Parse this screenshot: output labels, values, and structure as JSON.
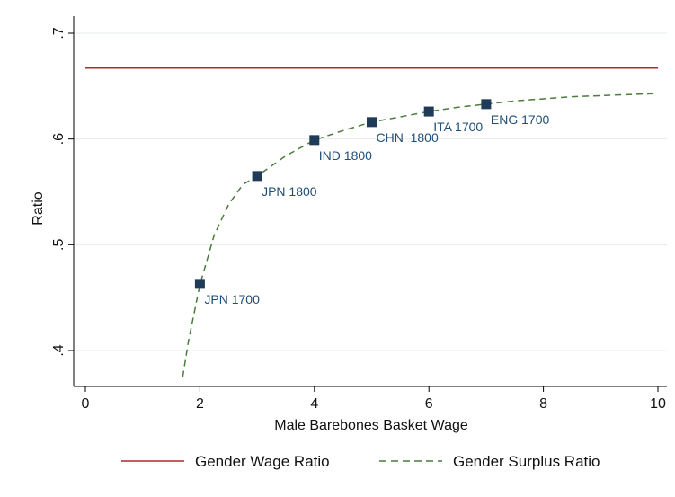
{
  "chart_data": {
    "type": "line",
    "xlabel": "Male Barebones Basket Wage",
    "ylabel": "Ratio",
    "xlim": [
      0,
      10
    ],
    "ylim": [
      0.37,
      0.72
    ],
    "x_ticks": [
      0,
      2,
      4,
      6,
      8,
      10
    ],
    "x_tick_labels": [
      "0",
      "2",
      "4",
      "6",
      "8",
      "10"
    ],
    "y_ticks": [
      0.4,
      0.5,
      0.6,
      0.7
    ],
    "y_tick_labels": [
      ".4",
      ".5",
      ".6",
      ".7"
    ],
    "grid": true,
    "legend_position": "bottom",
    "series": [
      {
        "name": "Gender Wage Ratio",
        "style": "solid",
        "color": "#b0272d",
        "x": [
          0,
          10
        ],
        "y": [
          0.667,
          0.667
        ]
      },
      {
        "name": "Gender Surplus Ratio",
        "style": "dashed",
        "color": "#4a7c3b",
        "x": [
          1.7,
          1.8,
          2,
          2.25,
          2.5,
          2.75,
          3,
          3.5,
          4,
          4.5,
          5,
          5.5,
          6,
          6.5,
          7,
          7.5,
          8,
          8.5,
          9,
          9.5,
          10
        ],
        "y": [
          0.375,
          0.409,
          0.462,
          0.509,
          0.538,
          0.557,
          0.565,
          0.584,
          0.599,
          0.608,
          0.616,
          0.621,
          0.626,
          0.63,
          0.633,
          0.636,
          0.638,
          0.64,
          0.641,
          0.642,
          0.643
        ]
      }
    ],
    "points": [
      {
        "label": "JPN 1700",
        "x": 2,
        "y": 0.463
      },
      {
        "label": "JPN 1800",
        "x": 3,
        "y": 0.565
      },
      {
        "label": "IND 1800",
        "x": 4,
        "y": 0.599
      },
      {
        "label": "CHN  1800",
        "x": 5,
        "y": 0.616
      },
      {
        "label": "ITA 1700",
        "x": 6,
        "y": 0.626
      },
      {
        "label": "ENG 1700",
        "x": 7,
        "y": 0.633
      }
    ],
    "point_color": "#1f3b57"
  }
}
